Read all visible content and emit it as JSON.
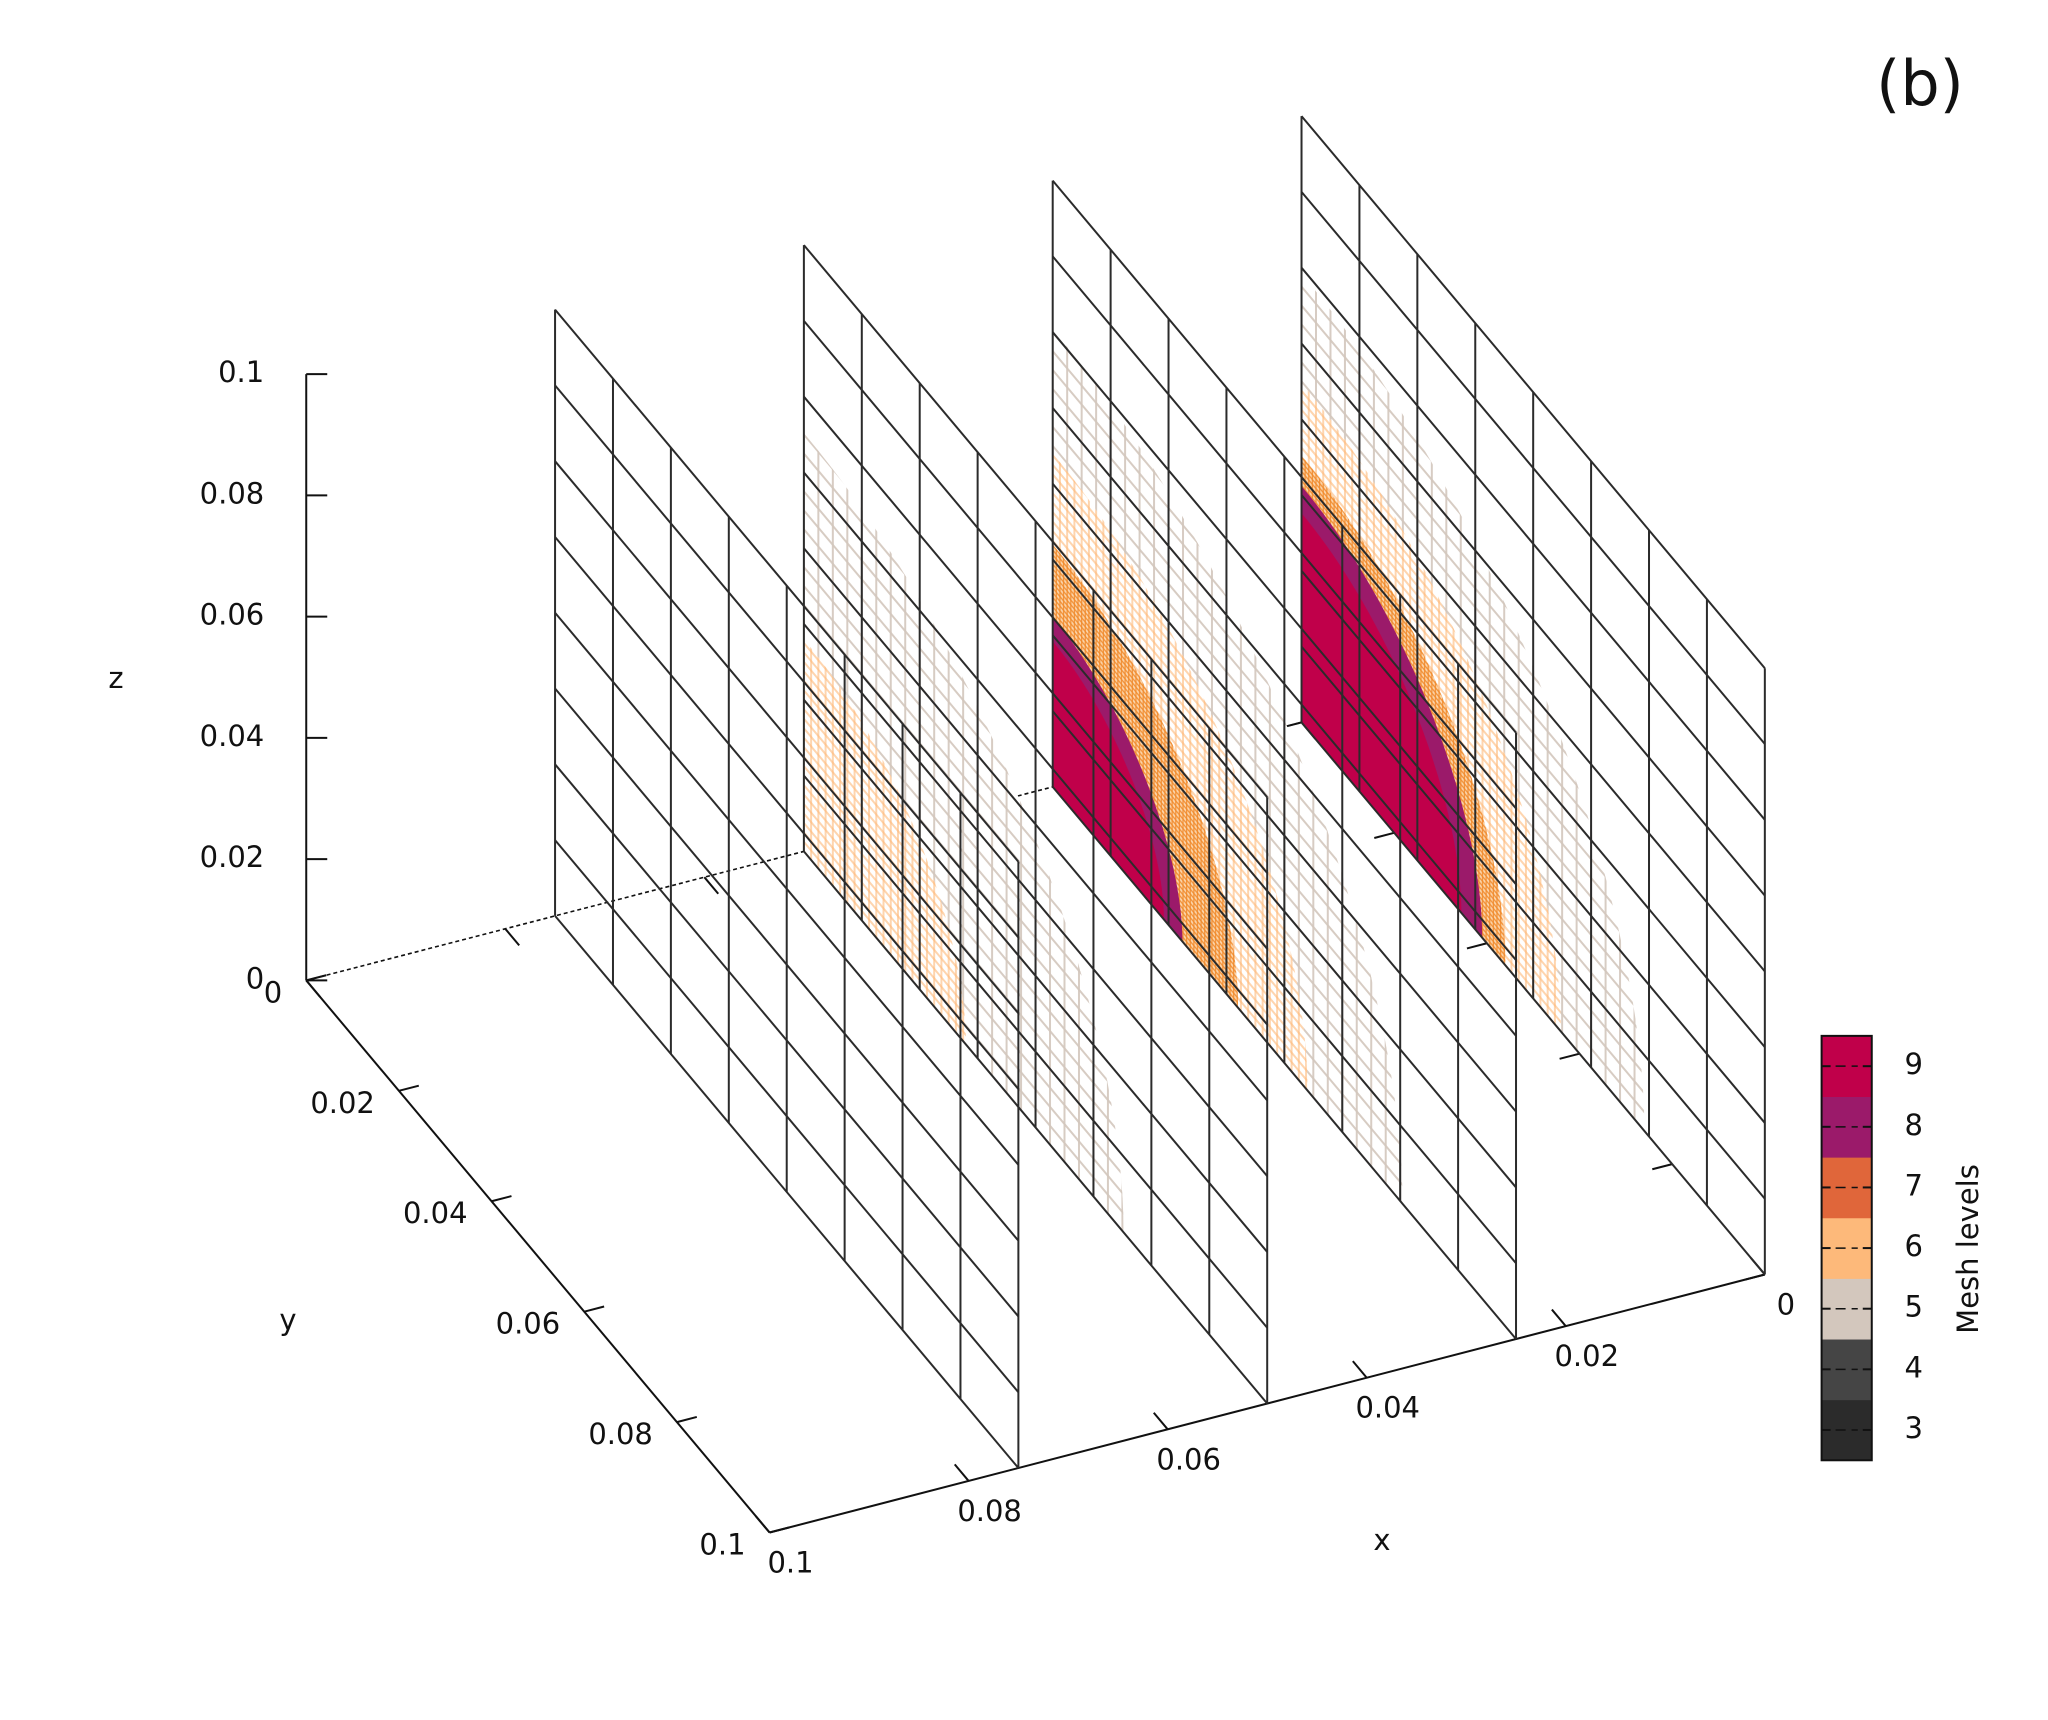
{
  "chart_data": {
    "type": "mesh-slices",
    "panel_label": "(b)",
    "x_label": "x",
    "y_label": "y",
    "z_label": "z",
    "xlim": [
      0,
      0.1
    ],
    "ylim": [
      0,
      0.1
    ],
    "zlim": [
      0,
      0.1
    ],
    "xticks": [
      0,
      0.02,
      0.04,
      0.06,
      0.08,
      0.1
    ],
    "yticks": [
      0,
      0.02,
      0.04,
      0.06,
      0.08,
      0.1
    ],
    "zticks": [
      0,
      0.02,
      0.04,
      0.06,
      0.08,
      0.1
    ],
    "slices": [
      {
        "x": 0,
        "base_level": 3,
        "regions": [
          {
            "level": 5,
            "radius": 0.074
          },
          {
            "level": 6,
            "radius": 0.056
          },
          {
            "level": 7,
            "radius": 0.044
          },
          {
            "level": 8,
            "radius": 0.039
          },
          {
            "level": 9,
            "radius": 0.0345
          }
        ]
      },
      {
        "x": 0.025,
        "base_level": 3,
        "regions": [
          {
            "level": 5,
            "radius": 0.0755
          },
          {
            "level": 6,
            "radius": 0.055
          },
          {
            "level": 7,
            "radius": 0.04
          },
          {
            "level": 8,
            "radius": 0.028
          },
          {
            "level": 9,
            "radius": 0.024
          }
        ]
      },
      {
        "x": 0.05,
        "base_level": 3,
        "regions": [
          {
            "level": 5,
            "radius": 0.069
          },
          {
            "level": 6,
            "radius": 0.035
          }
        ]
      },
      {
        "x": 0.075,
        "base_level": 3,
        "regions": []
      }
    ],
    "colorbar": {
      "label": "Mesh levels",
      "levels": [
        3,
        4,
        5,
        6,
        7,
        8,
        9
      ],
      "colors": [
        "#2b2b2b",
        "#454545",
        "#d3c7bd",
        "#fdb97a",
        "#e0663a",
        "#9b1a6a",
        "#c0004a"
      ]
    }
  }
}
